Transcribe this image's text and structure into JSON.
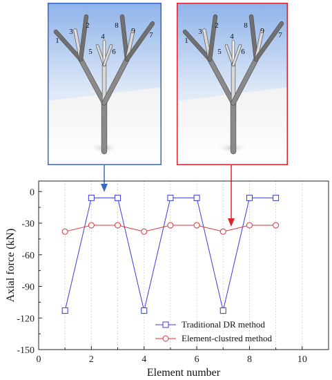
{
  "tree_panels": [
    {
      "name": "traditional-dr-tree",
      "frame_color": "#3a66c9",
      "labels": [
        "1",
        "3",
        "2",
        "4",
        "5",
        "6",
        "8",
        "9",
        "7"
      ]
    },
    {
      "name": "element-clustered-tree",
      "frame_color": "#e0202a",
      "labels": [
        "1",
        "3",
        "2",
        "4",
        "5",
        "6",
        "8",
        "9",
        "7"
      ]
    }
  ],
  "chart_data": {
    "type": "line",
    "xlabel": "Element number",
    "ylabel": "Axial force (kN)",
    "xlim": [
      0,
      11
    ],
    "ylim": [
      -150,
      10
    ],
    "xticks": [
      0,
      2,
      4,
      6,
      8,
      10
    ],
    "yticks": [
      0,
      -30,
      -60,
      -90,
      -120,
      -150
    ],
    "grid": "dotted vertical lines",
    "legend_position": "bottom-right",
    "series": [
      {
        "name": "Traditional DR method",
        "color": "#3a3ae0",
        "marker": "square",
        "x": [
          1,
          2,
          3,
          4,
          5,
          6,
          7,
          8,
          9
        ],
        "y": [
          -113,
          -6,
          -6,
          -113,
          -6,
          -6,
          -113,
          -6,
          -6
        ]
      },
      {
        "name": "Element-clustred method",
        "color": "#e0303a",
        "marker": "circle",
        "x": [
          1,
          2,
          3,
          4,
          5,
          6,
          7,
          8,
          9
        ],
        "y": [
          -38,
          -32,
          -32,
          -38,
          -32,
          -32,
          -38,
          -32,
          -32
        ]
      }
    ]
  }
}
